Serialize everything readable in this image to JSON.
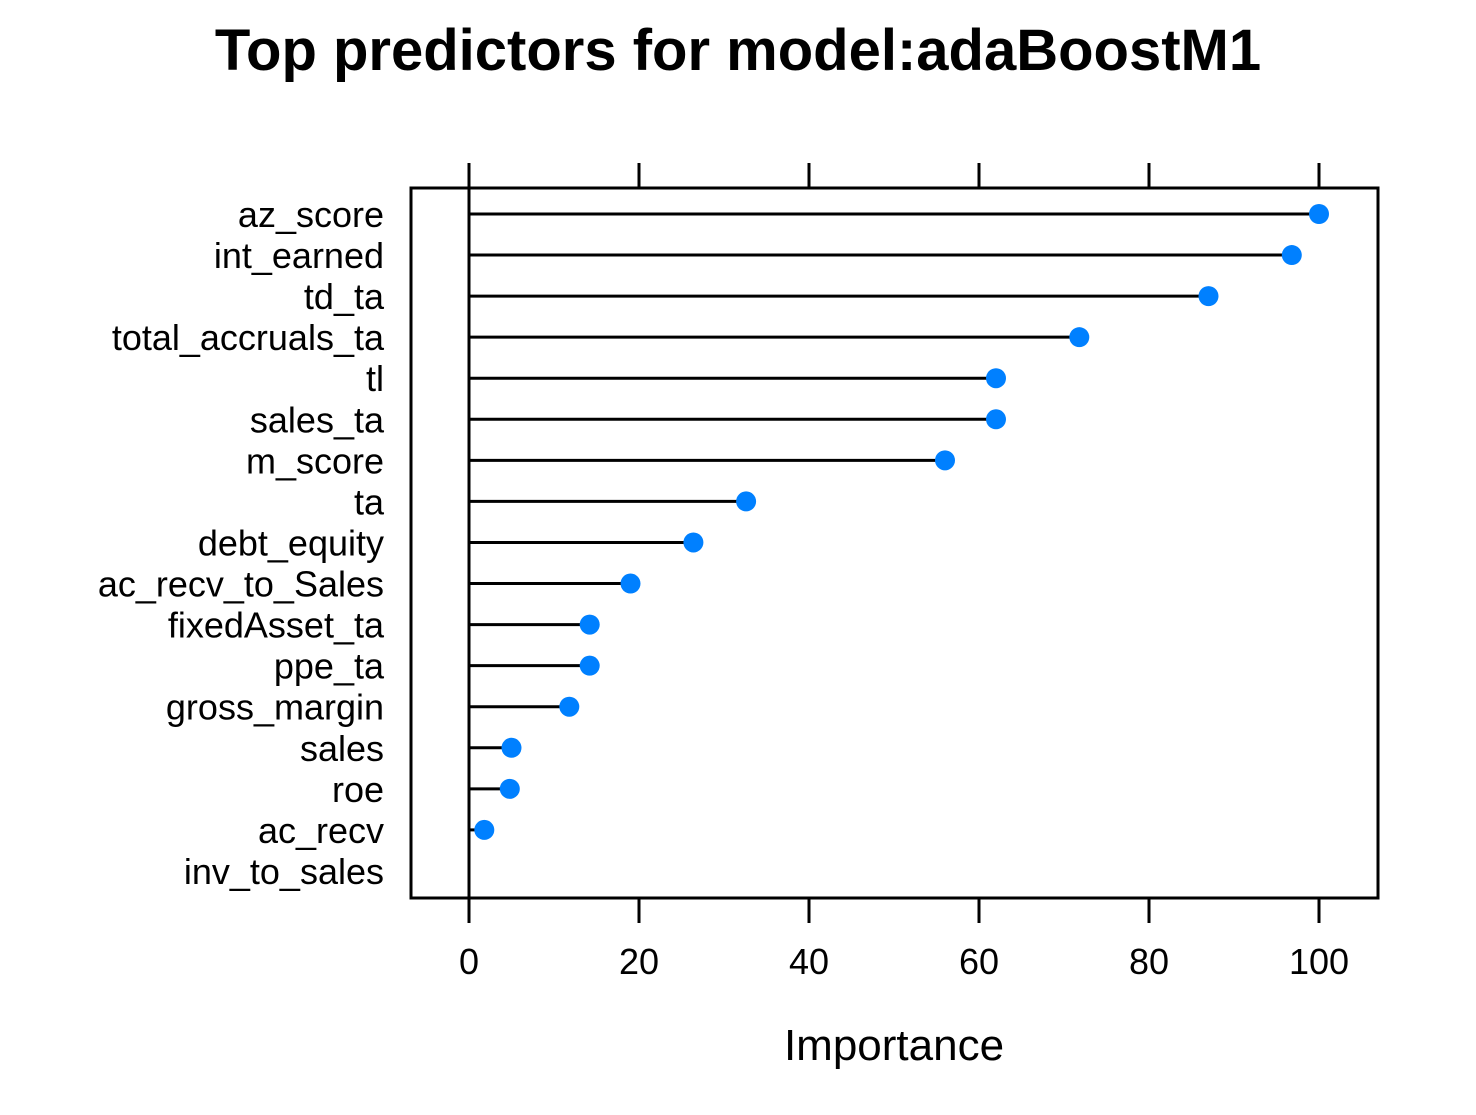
{
  "chart_data": {
    "type": "dot",
    "title": "Top predictors for model:adaBoostM1",
    "xlabel": "Importance",
    "ylabel": "",
    "xlim": [
      -7,
      107
    ],
    "xticks": [
      0,
      20,
      40,
      60,
      80,
      100
    ],
    "xtick_labels": [
      "0",
      "20",
      "40",
      "60",
      "80",
      "100"
    ],
    "grid": false,
    "point_color": "#0080ff",
    "categories": [
      "az_score",
      "int_earned",
      "td_ta",
      "total_accruals_ta",
      "tl",
      "sales_ta",
      "m_score",
      "ta",
      "debt_equity",
      "ac_recv_to_Sales",
      "fixedAsset_ta",
      "ppe_ta",
      "gross_margin",
      "sales",
      "roe",
      "ac_recv",
      "inv_to_sales"
    ],
    "values": [
      100,
      96.8,
      87,
      71.8,
      62,
      62,
      56,
      32.6,
      26.4,
      19,
      14.2,
      14.2,
      11.8,
      5,
      4.8,
      1.8,
      0
    ]
  }
}
